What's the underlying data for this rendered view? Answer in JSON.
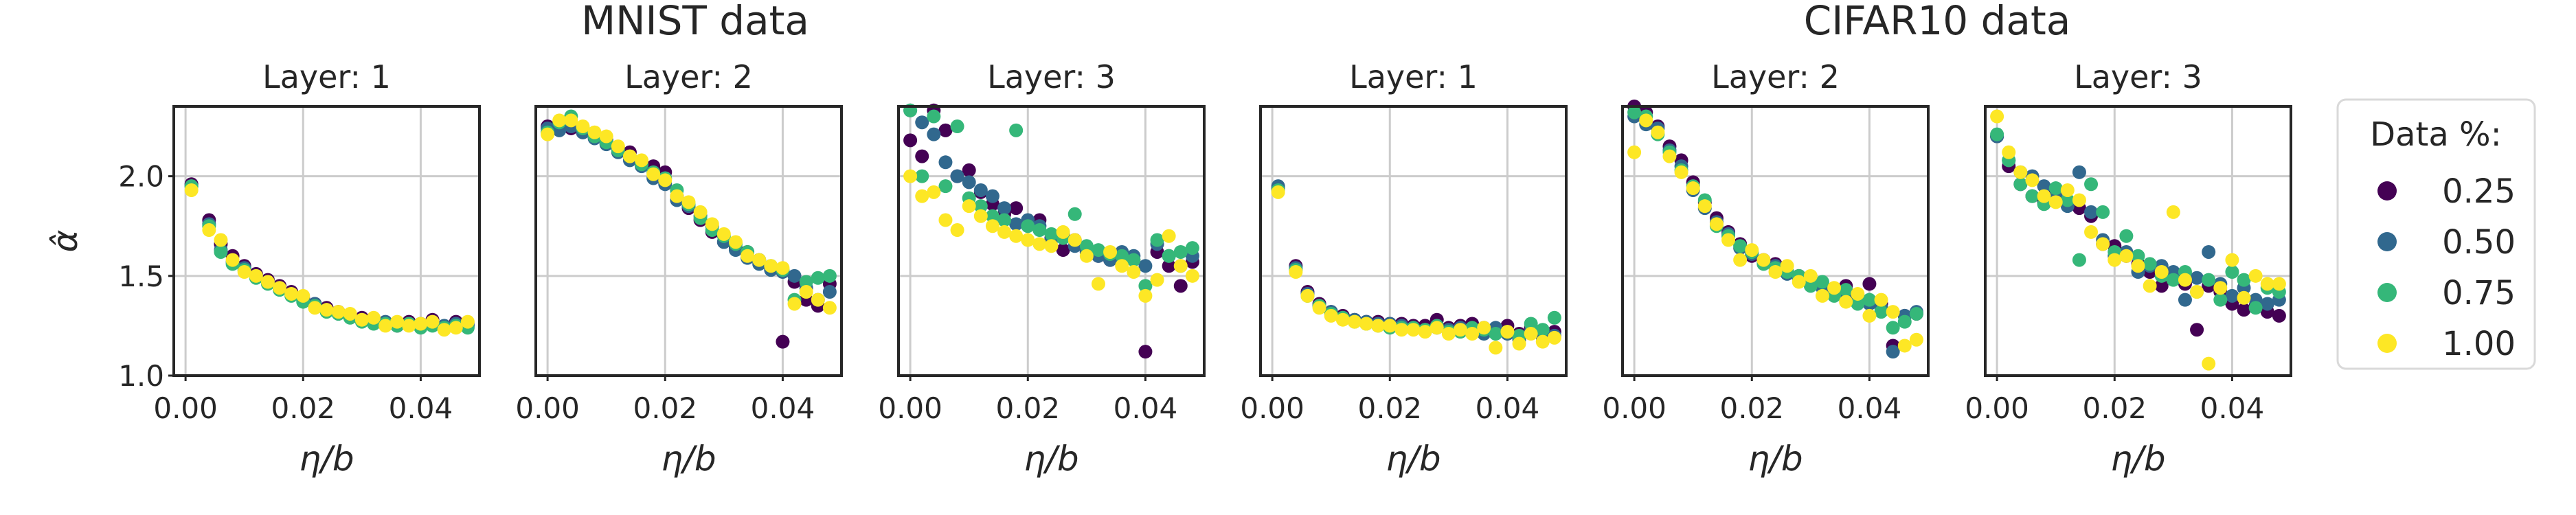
{
  "suptitles": [
    "MNIST data",
    "CIFAR10 data"
  ],
  "legend": {
    "title": "Data %:",
    "entries": [
      {
        "label": "0.25",
        "color": "#440154"
      },
      {
        "label": "0.50",
        "color": "#31688e"
      },
      {
        "label": "0.75",
        "color": "#35b779"
      },
      {
        "label": "1.00",
        "color": "#fde725"
      }
    ]
  },
  "chart_data": [
    {
      "type": "scatter",
      "title": "Layer: 1",
      "xlabel": "η/b",
      "ylabel": "α̂",
      "xlim": [
        -0.002,
        0.05
      ],
      "ylim": [
        1.0,
        2.35
      ],
      "xticks": [
        "0.00",
        "0.02",
        "0.04"
      ],
      "yticks": [
        "1.0",
        "1.5",
        "2.0"
      ],
      "grid": true,
      "x": [
        0.001,
        0.004,
        0.006,
        0.008,
        0.01,
        0.012,
        0.014,
        0.016,
        0.018,
        0.02,
        0.022,
        0.024,
        0.026,
        0.028,
        0.03,
        0.032,
        0.034,
        0.036,
        0.038,
        0.04,
        0.042,
        0.044,
        0.046,
        0.048
      ],
      "series": [
        {
          "name": "0.25",
          "values": [
            1.96,
            1.78,
            1.66,
            1.6,
            1.55,
            1.51,
            1.48,
            1.45,
            1.42,
            1.39,
            1.36,
            1.34,
            1.32,
            1.3,
            1.29,
            1.27,
            1.26,
            1.25,
            1.27,
            1.25,
            1.28,
            1.24,
            1.27,
            1.25
          ]
        },
        {
          "name": "0.50",
          "values": [
            1.95,
            1.76,
            1.63,
            1.57,
            1.54,
            1.5,
            1.47,
            1.44,
            1.41,
            1.38,
            1.36,
            1.33,
            1.31,
            1.3,
            1.28,
            1.27,
            1.27,
            1.26,
            1.26,
            1.26,
            1.26,
            1.25,
            1.26,
            1.26
          ]
        },
        {
          "name": "0.75",
          "values": [
            1.95,
            1.75,
            1.62,
            1.56,
            1.53,
            1.49,
            1.46,
            1.43,
            1.4,
            1.37,
            1.35,
            1.32,
            1.31,
            1.29,
            1.27,
            1.26,
            1.26,
            1.25,
            1.26,
            1.24,
            1.25,
            1.24,
            1.25,
            1.24
          ]
        },
        {
          "name": "1.00",
          "values": [
            1.93,
            1.73,
            1.68,
            1.58,
            1.52,
            1.5,
            1.47,
            1.44,
            1.41,
            1.4,
            1.34,
            1.33,
            1.32,
            1.31,
            1.28,
            1.29,
            1.25,
            1.27,
            1.25,
            1.26,
            1.27,
            1.23,
            1.24,
            1.27
          ]
        }
      ]
    },
    {
      "type": "scatter",
      "title": "Layer: 2",
      "xlabel": "η/b",
      "ylabel": "",
      "xlim": [
        -0.002,
        0.05
      ],
      "ylim": [
        1.0,
        2.35
      ],
      "xticks": [
        "0.00",
        "0.02",
        "0.04"
      ],
      "yticks": [
        "1.0",
        "1.5",
        "2.0"
      ],
      "grid": true,
      "x": [
        0.0,
        0.002,
        0.004,
        0.006,
        0.008,
        0.01,
        0.012,
        0.014,
        0.016,
        0.018,
        0.02,
        0.022,
        0.024,
        0.026,
        0.028,
        0.03,
        0.032,
        0.034,
        0.036,
        0.038,
        0.04,
        0.042,
        0.044,
        0.046,
        0.048
      ],
      "series": [
        {
          "name": "0.25",
          "values": [
            2.25,
            2.24,
            2.24,
            2.22,
            2.2,
            2.18,
            2.14,
            2.12,
            2.07,
            2.05,
            2.02,
            1.9,
            1.84,
            1.78,
            1.72,
            1.67,
            1.64,
            1.62,
            1.58,
            1.54,
            1.17,
            1.47,
            1.38,
            1.35,
            1.46
          ]
        },
        {
          "name": "0.50",
          "values": [
            2.24,
            2.23,
            2.25,
            2.22,
            2.19,
            2.16,
            2.12,
            2.08,
            2.05,
            1.99,
            1.96,
            1.88,
            1.85,
            1.8,
            1.75,
            1.67,
            1.63,
            1.59,
            1.56,
            1.53,
            1.52,
            1.5,
            1.44,
            1.38,
            1.42
          ]
        },
        {
          "name": "0.75",
          "values": [
            2.22,
            2.27,
            2.3,
            2.24,
            2.2,
            2.17,
            2.13,
            2.1,
            2.06,
            2.02,
            1.99,
            1.93,
            1.86,
            1.79,
            1.73,
            1.7,
            1.66,
            1.62,
            1.58,
            1.55,
            1.53,
            1.38,
            1.47,
            1.49,
            1.5
          ]
        },
        {
          "name": "1.00",
          "values": [
            2.21,
            2.28,
            2.28,
            2.25,
            2.22,
            2.2,
            2.15,
            2.1,
            2.08,
            2.01,
            1.98,
            1.9,
            1.87,
            1.82,
            1.76,
            1.71,
            1.67,
            1.6,
            1.58,
            1.55,
            1.54,
            1.36,
            1.42,
            1.38,
            1.34
          ]
        }
      ]
    },
    {
      "type": "scatter",
      "title": "Layer: 3",
      "xlabel": "η/b",
      "ylabel": "",
      "xlim": [
        -0.002,
        0.05
      ],
      "ylim": [
        1.0,
        2.35
      ],
      "xticks": [
        "0.00",
        "0.02",
        "0.04"
      ],
      "yticks": [
        "1.0",
        "1.5",
        "2.0"
      ],
      "grid": true,
      "x": [
        0.0,
        0.002,
        0.004,
        0.006,
        0.008,
        0.01,
        0.012,
        0.014,
        0.016,
        0.018,
        0.02,
        0.022,
        0.024,
        0.026,
        0.028,
        0.03,
        0.032,
        0.034,
        0.036,
        0.038,
        0.04,
        0.042,
        0.044,
        0.046,
        0.048
      ],
      "series": [
        {
          "name": "0.25",
          "values": [
            2.18,
            2.1,
            2.33,
            2.23,
            2.0,
            2.03,
            1.92,
            1.86,
            1.81,
            1.84,
            1.76,
            1.78,
            1.69,
            1.63,
            1.68,
            1.62,
            1.6,
            1.58,
            1.6,
            1.58,
            1.12,
            1.62,
            1.55,
            1.45,
            1.57
          ]
        },
        {
          "name": "0.50",
          "values": [
            2.33,
            2.27,
            2.21,
            2.07,
            2.0,
            1.97,
            1.93,
            1.9,
            1.84,
            1.76,
            1.78,
            1.75,
            1.68,
            1.71,
            1.65,
            1.62,
            1.6,
            1.58,
            1.62,
            1.6,
            1.55,
            1.66,
            1.6,
            1.55,
            1.6
          ]
        },
        {
          "name": "0.75",
          "values": [
            2.33,
            2.0,
            2.3,
            1.95,
            2.25,
            1.89,
            1.85,
            1.8,
            1.78,
            2.23,
            1.75,
            1.73,
            1.71,
            1.69,
            1.81,
            1.65,
            1.63,
            1.61,
            1.6,
            1.58,
            1.45,
            1.68,
            1.6,
            1.62,
            1.64
          ]
        },
        {
          "name": "1.00",
          "values": [
            2.0,
            1.9,
            1.92,
            1.78,
            1.73,
            1.85,
            1.8,
            1.75,
            1.72,
            1.7,
            1.68,
            1.66,
            1.65,
            1.72,
            1.68,
            1.6,
            1.46,
            1.62,
            1.55,
            1.52,
            1.4,
            1.48,
            1.7,
            1.55,
            1.5
          ]
        }
      ]
    },
    {
      "type": "scatter",
      "title": "Layer: 1",
      "xlabel": "η/b",
      "ylabel": "",
      "xlim": [
        -0.002,
        0.05
      ],
      "ylim": [
        1.0,
        2.35
      ],
      "xticks": [
        "0.00",
        "0.02",
        "0.04"
      ],
      "yticks": [
        "1.0",
        "1.5",
        "2.0"
      ],
      "grid": true,
      "x": [
        0.001,
        0.004,
        0.006,
        0.008,
        0.01,
        0.012,
        0.014,
        0.016,
        0.018,
        0.02,
        0.022,
        0.024,
        0.026,
        0.028,
        0.03,
        0.032,
        0.034,
        0.036,
        0.038,
        0.04,
        0.042,
        0.044,
        0.046,
        0.048
      ],
      "series": [
        {
          "name": "0.25",
          "values": [
            1.94,
            1.55,
            1.42,
            1.36,
            1.32,
            1.3,
            1.28,
            1.27,
            1.27,
            1.26,
            1.26,
            1.25,
            1.25,
            1.28,
            1.24,
            1.25,
            1.26,
            1.24,
            1.23,
            1.25,
            1.21,
            1.24,
            1.2,
            1.22
          ]
        },
        {
          "name": "0.50",
          "values": [
            1.95,
            1.54,
            1.41,
            1.35,
            1.32,
            1.29,
            1.28,
            1.27,
            1.26,
            1.26,
            1.25,
            1.24,
            1.23,
            1.24,
            1.23,
            1.24,
            1.22,
            1.21,
            1.24,
            1.21,
            1.18,
            1.22,
            1.19,
            1.2
          ]
        },
        {
          "name": "0.75",
          "values": [
            1.93,
            1.53,
            1.4,
            1.35,
            1.31,
            1.29,
            1.27,
            1.26,
            1.25,
            1.24,
            1.24,
            1.24,
            1.23,
            1.25,
            1.22,
            1.22,
            1.24,
            1.23,
            1.21,
            1.22,
            1.2,
            1.26,
            1.23,
            1.29
          ]
        },
        {
          "name": "1.00",
          "values": [
            1.92,
            1.52,
            1.4,
            1.34,
            1.3,
            1.28,
            1.27,
            1.26,
            1.25,
            1.25,
            1.23,
            1.23,
            1.22,
            1.24,
            1.21,
            1.23,
            1.21,
            1.24,
            1.14,
            1.22,
            1.16,
            1.21,
            1.17,
            1.19
          ]
        }
      ]
    },
    {
      "type": "scatter",
      "title": "Layer: 2",
      "xlabel": "η/b",
      "ylabel": "",
      "xlim": [
        -0.002,
        0.05
      ],
      "ylim": [
        1.0,
        2.35
      ],
      "xticks": [
        "0.00",
        "0.02",
        "0.04"
      ],
      "yticks": [
        "1.0",
        "1.5",
        "2.0"
      ],
      "grid": true,
      "x": [
        0.0,
        0.002,
        0.004,
        0.006,
        0.008,
        0.01,
        0.012,
        0.014,
        0.016,
        0.018,
        0.02,
        0.022,
        0.024,
        0.026,
        0.028,
        0.03,
        0.032,
        0.034,
        0.036,
        0.038,
        0.04,
        0.042,
        0.044,
        0.046,
        0.048
      ],
      "series": [
        {
          "name": "0.25",
          "values": [
            2.35,
            2.32,
            2.25,
            2.15,
            2.08,
            1.97,
            1.87,
            1.79,
            1.72,
            1.66,
            1.6,
            1.58,
            1.56,
            1.52,
            1.5,
            1.48,
            1.45,
            1.43,
            1.45,
            1.4,
            1.46,
            1.36,
            1.15,
            1.3,
            1.31
          ]
        },
        {
          "name": "0.50",
          "values": [
            2.3,
            2.26,
            2.24,
            2.13,
            2.05,
            1.93,
            1.84,
            1.77,
            1.71,
            1.64,
            1.61,
            1.57,
            1.55,
            1.51,
            1.49,
            1.47,
            1.44,
            1.42,
            1.4,
            1.38,
            1.36,
            1.34,
            1.12,
            1.3,
            1.32
          ]
        },
        {
          "name": "0.75",
          "values": [
            2.32,
            2.3,
            2.21,
            2.12,
            2.03,
            1.95,
            1.88,
            1.75,
            1.7,
            1.65,
            1.62,
            1.56,
            1.54,
            1.52,
            1.5,
            1.45,
            1.47,
            1.4,
            1.43,
            1.36,
            1.38,
            1.32,
            1.24,
            1.27,
            1.31
          ]
        },
        {
          "name": "1.00",
          "values": [
            2.12,
            2.28,
            2.22,
            2.1,
            2.02,
            1.94,
            1.85,
            1.76,
            1.68,
            1.58,
            1.63,
            1.58,
            1.52,
            1.55,
            1.47,
            1.5,
            1.4,
            1.44,
            1.37,
            1.41,
            1.3,
            1.38,
            1.32,
            1.15,
            1.18
          ]
        }
      ]
    },
    {
      "type": "scatter",
      "title": "Layer: 3",
      "xlabel": "η/b",
      "ylabel": "",
      "xlim": [
        -0.002,
        0.05
      ],
      "ylim": [
        1.0,
        2.35
      ],
      "xticks": [
        "0.00",
        "0.02",
        "0.04"
      ],
      "yticks": [
        "1.0",
        "1.5",
        "2.0"
      ],
      "grid": true,
      "x": [
        0.0,
        0.002,
        0.004,
        0.006,
        0.008,
        0.01,
        0.012,
        0.014,
        0.016,
        0.018,
        0.02,
        0.022,
        0.024,
        0.026,
        0.028,
        0.03,
        0.032,
        0.034,
        0.036,
        0.038,
        0.04,
        0.042,
        0.044,
        0.046,
        0.048
      ],
      "series": [
        {
          "name": "0.25",
          "values": [
            2.2,
            2.05,
            1.96,
            1.9,
            1.87,
            1.92,
            1.86,
            1.84,
            1.8,
            1.66,
            1.65,
            1.6,
            1.56,
            1.52,
            1.45,
            1.5,
            1.46,
            1.23,
            1.45,
            1.42,
            1.36,
            1.33,
            1.35,
            1.32,
            1.3
          ]
        },
        {
          "name": "0.50",
          "values": [
            2.2,
            2.08,
            2.02,
            2.0,
            1.95,
            1.9,
            1.85,
            2.02,
            1.82,
            1.68,
            1.6,
            1.62,
            1.52,
            1.55,
            1.55,
            1.52,
            1.38,
            1.49,
            1.62,
            1.46,
            1.4,
            1.44,
            1.38,
            1.36,
            1.38
          ]
        },
        {
          "name": "0.75",
          "values": [
            2.21,
            2.08,
            1.96,
            1.9,
            1.86,
            1.94,
            1.88,
            1.58,
            1.96,
            1.82,
            1.62,
            1.7,
            1.6,
            1.56,
            1.5,
            1.48,
            1.52,
            1.42,
            1.48,
            1.38,
            1.52,
            1.48,
            1.34,
            1.44,
            1.42
          ]
        },
        {
          "name": "1.00",
          "values": [
            2.3,
            2.12,
            2.02,
            1.98,
            1.9,
            1.87,
            1.93,
            1.88,
            1.72,
            1.66,
            1.58,
            1.6,
            1.55,
            1.45,
            1.52,
            1.82,
            1.48,
            1.42,
            1.06,
            1.44,
            1.58,
            1.39,
            1.5,
            1.46,
            1.46
          ]
        }
      ]
    }
  ]
}
